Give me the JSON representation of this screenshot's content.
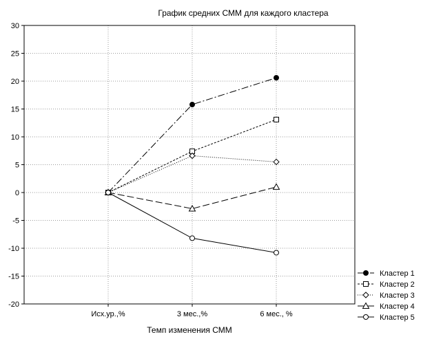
{
  "chart_data": {
    "type": "line",
    "title": "График средних СММ для каждого кластера",
    "xlabel": "Темп изменения СММ",
    "ylabel": "",
    "categories": [
      "Исх.ур.,%",
      "3 мес.,%",
      "6 мес., %"
    ],
    "ylim": [
      -20,
      30
    ],
    "yticks": [
      30,
      25,
      20,
      15,
      10,
      5,
      0,
      -5,
      -10,
      -15,
      -20
    ],
    "grid": true,
    "legend_position": "bottom-right",
    "series": [
      {
        "name": "Кластер 1",
        "values": [
          0,
          15.8,
          20.6
        ],
        "marker": "filled-circle",
        "dash": "dash-dot",
        "color": "#000000"
      },
      {
        "name": "Кластер 2",
        "values": [
          0,
          7.4,
          13.1
        ],
        "marker": "open-square",
        "dash": "dashed",
        "color": "#000000"
      },
      {
        "name": "Кластер 3",
        "values": [
          0,
          6.6,
          5.5
        ],
        "marker": "open-diamond",
        "dash": "dotted",
        "color": "#000000"
      },
      {
        "name": "Кластер 4",
        "values": [
          0,
          -2.9,
          1.0
        ],
        "marker": "open-triangle",
        "dash": "long-dash",
        "color": "#000000"
      },
      {
        "name": "Кластер 5",
        "values": [
          0,
          -8.2,
          -10.8
        ],
        "marker": "open-circle",
        "dash": "solid",
        "color": "#000000"
      }
    ]
  }
}
